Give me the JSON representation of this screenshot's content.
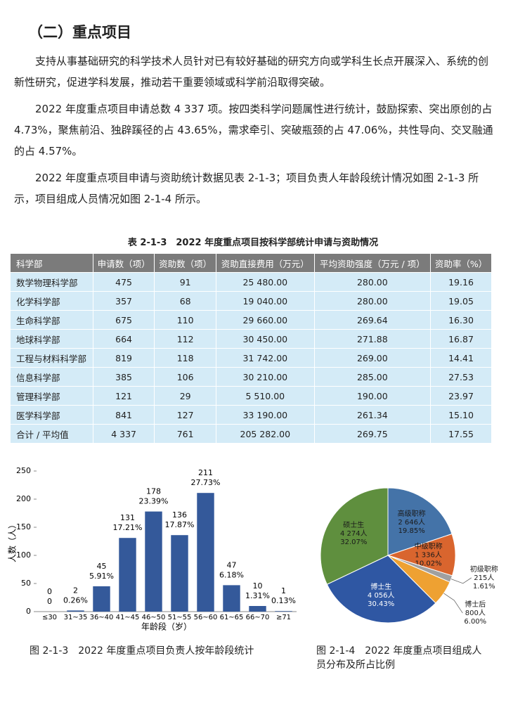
{
  "heading": "（二）重点项目",
  "paragraphs": [
    "支持从事基础研究的科学技术人员针对已有较好基础的研究方向或学科生长点开展深入、系统的创新性研究，促进学科发展，推动若干重要领域或科学前沿取得突破。",
    "2022 年度重点项目申请总数 4 337 项。按四类科学问题属性进行统计，鼓励探索、突出原创的占 4.73%，聚焦前沿、独辟蹊径的占 43.65%，需求牵引、突破瓶颈的占 47.06%，共性导向、交叉融通的占 4.57%。",
    "2022 年度重点项目申请与资助统计数据见表 2-1-3；项目负责人年龄段统计情况如图 2-1-3 所示，项目组成人员情况如图 2-1-4 所示。"
  ],
  "table": {
    "caption": "表 2-1-3　2022 年度重点项目按科学部统计申请与资助情况",
    "header": [
      "科学部",
      "申请数（项）",
      "资助数（项）",
      "资助直接费用（万元）",
      "平均资助强度（万元 / 项）",
      "资助率（%）"
    ],
    "rows": [
      [
        "数学物理科学部",
        "475",
        "91",
        "25 480.00",
        "280.00",
        "19.16"
      ],
      [
        "化学科学部",
        "357",
        "68",
        "19 040.00",
        "280.00",
        "19.05"
      ],
      [
        "生命科学部",
        "675",
        "110",
        "29 660.00",
        "269.64",
        "16.30"
      ],
      [
        "地球科学部",
        "664",
        "112",
        "30 450.00",
        "271.88",
        "16.87"
      ],
      [
        "工程与材料科学部",
        "819",
        "118",
        "31 742.00",
        "269.00",
        "14.41"
      ],
      [
        "信息科学部",
        "385",
        "106",
        "30 210.00",
        "285.00",
        "27.53"
      ],
      [
        "管理科学部",
        "121",
        "29",
        "5 510.00",
        "190.00",
        "23.97"
      ],
      [
        "医学科学部",
        "841",
        "127",
        "33 190.00",
        "261.34",
        "15.10"
      ],
      [
        "合计 / 平均值",
        "4 337",
        "761",
        "205 282.00",
        "269.75",
        "17.55"
      ]
    ]
  },
  "chart_data": [
    {
      "type": "bar",
      "caption": "图 2-1-3　2022 年度重点项目负责人按年龄段统计",
      "x_label": "年龄段（岁）",
      "y_label": "人数（人）",
      "categories": [
        "≤30",
        "31~35",
        "36~40",
        "41~45",
        "46~50",
        "51~55",
        "56~60",
        "61~65",
        "66~70",
        "≥71"
      ],
      "values": [
        0,
        2,
        45,
        131,
        178,
        136,
        211,
        47,
        10,
        1
      ],
      "share_labels": [
        "0",
        "0.26%",
        "5.91%",
        "17.21%",
        "23.39%",
        "17.87%",
        "27.73%",
        "6.18%",
        "1.31%",
        "0.13%"
      ],
      "color": "#34599a",
      "ylim": [
        0,
        250
      ],
      "yticks": [
        0,
        50,
        100,
        150,
        200,
        250
      ]
    },
    {
      "type": "pie",
      "caption": "图 2-1-4　2022 年度重点项目组成人员分布及所占比例",
      "categories": [
        "高级职称",
        "中级职称",
        "初级职称",
        "博士后",
        "博士生",
        "硕士生"
      ],
      "values": [
        2646,
        1336,
        215,
        800,
        4056,
        4274
      ],
      "value_labels": [
        "2 646人",
        "1 336人",
        "215人",
        "800人",
        "4 056人",
        "4 274人"
      ],
      "share_labels": [
        "19.85%",
        "10.02%",
        "1.61%",
        "6.00%",
        "30.43%",
        "32.07%"
      ],
      "colors": [
        "#4473a8",
        "#d9652e",
        "#a0a0a0",
        "#eea132",
        "#2f57a3",
        "#5f8f3e"
      ]
    }
  ]
}
